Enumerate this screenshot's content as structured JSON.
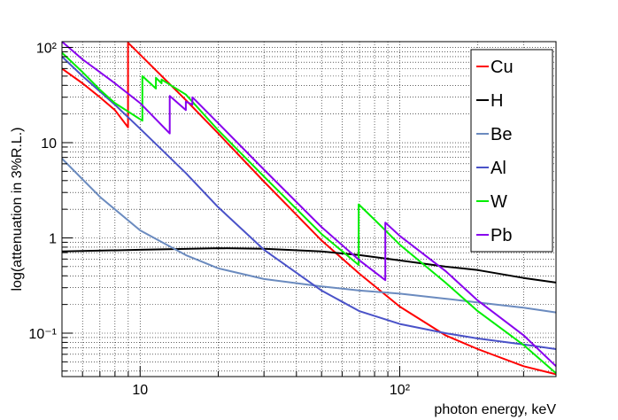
{
  "chart_data": {
    "type": "line",
    "xlabel": "photon energy, keV",
    "ylabel": "log(attenuation in 3%R.L.)",
    "x_scale": "log",
    "y_scale": "log",
    "xlim": [
      5,
      400
    ],
    "ylim": [
      0.035,
      115
    ],
    "grid": true,
    "legend_position": "top-right",
    "x_ticks": [
      {
        "value": 10,
        "label": "10"
      },
      {
        "value": 100,
        "label": "10²"
      }
    ],
    "y_ticks": [
      {
        "value": 0.1,
        "label": "10⁻¹"
      },
      {
        "value": 1,
        "label": "1"
      },
      {
        "value": 10,
        "label": "10"
      },
      {
        "value": 100,
        "label": "10²"
      }
    ],
    "series": [
      {
        "name": "Cu",
        "color": "#ff0000",
        "points": [
          [
            5,
            60
          ],
          [
            6,
            42
          ],
          [
            7,
            30
          ],
          [
            8,
            22
          ],
          [
            8.98,
            14.5
          ],
          [
            8.98,
            112
          ],
          [
            10,
            84
          ],
          [
            15,
            28
          ],
          [
            20,
            12.5
          ],
          [
            30,
            3.9
          ],
          [
            50,
            0.94
          ],
          [
            70,
            0.42
          ],
          [
            100,
            0.19
          ],
          [
            150,
            0.095
          ],
          [
            200,
            0.068
          ],
          [
            300,
            0.045
          ],
          [
            400,
            0.037
          ]
        ]
      },
      {
        "name": "H",
        "color": "#000000",
        "points": [
          [
            5,
            0.72
          ],
          [
            10,
            0.75
          ],
          [
            20,
            0.78
          ],
          [
            30,
            0.77
          ],
          [
            50,
            0.72
          ],
          [
            70,
            0.66
          ],
          [
            100,
            0.58
          ],
          [
            150,
            0.5
          ],
          [
            200,
            0.46
          ],
          [
            300,
            0.38
          ],
          [
            400,
            0.34
          ]
        ]
      },
      {
        "name": "Be",
        "color": "#6b8bbf",
        "points": [
          [
            5,
            6.8
          ],
          [
            7,
            2.7
          ],
          [
            10,
            1.2
          ],
          [
            15,
            0.66
          ],
          [
            20,
            0.48
          ],
          [
            30,
            0.37
          ],
          [
            50,
            0.31
          ],
          [
            70,
            0.28
          ],
          [
            100,
            0.26
          ],
          [
            150,
            0.23
          ],
          [
            200,
            0.21
          ],
          [
            300,
            0.185
          ],
          [
            400,
            0.165
          ]
        ]
      },
      {
        "name": "Al",
        "color": "#4a52c8",
        "points": [
          [
            5,
            80
          ],
          [
            6,
            50
          ],
          [
            8,
            25
          ],
          [
            10,
            14
          ],
          [
            15,
            4.8
          ],
          [
            20,
            2.1
          ],
          [
            30,
            0.75
          ],
          [
            50,
            0.28
          ],
          [
            70,
            0.17
          ],
          [
            100,
            0.125
          ],
          [
            150,
            0.1
          ],
          [
            200,
            0.088
          ],
          [
            300,
            0.076
          ],
          [
            400,
            0.068
          ]
        ]
      },
      {
        "name": "W",
        "color": "#00ee00",
        "points": [
          [
            5,
            88
          ],
          [
            6,
            55
          ],
          [
            7,
            36
          ],
          [
            8,
            26
          ],
          [
            10.2,
            17
          ],
          [
            10.2,
            50
          ],
          [
            11.5,
            37
          ],
          [
            11.5,
            48
          ],
          [
            12.1,
            42
          ],
          [
            12.1,
            46
          ],
          [
            15,
            32
          ],
          [
            20,
            13.5
          ],
          [
            30,
            4.4
          ],
          [
            50,
            1.1
          ],
          [
            69.5,
            0.52
          ],
          [
            69.5,
            2.25
          ],
          [
            80,
            1.55
          ],
          [
            100,
            0.85
          ],
          [
            150,
            0.34
          ],
          [
            200,
            0.17
          ],
          [
            300,
            0.075
          ],
          [
            400,
            0.038
          ]
        ]
      },
      {
        "name": "Pb",
        "color": "#8800ee",
        "points": [
          [
            5,
            115
          ],
          [
            6,
            75
          ],
          [
            8,
            42
          ],
          [
            10,
            26
          ],
          [
            13,
            12.5
          ],
          [
            13,
            31
          ],
          [
            15,
            22
          ],
          [
            15,
            27
          ],
          [
            15.9,
            25
          ],
          [
            15.9,
            30
          ],
          [
            20,
            16
          ],
          [
            30,
            5.2
          ],
          [
            50,
            1.3
          ],
          [
            70,
            0.58
          ],
          [
            88,
            0.36
          ],
          [
            88,
            1.45
          ],
          [
            100,
            1.05
          ],
          [
            150,
            0.45
          ],
          [
            200,
            0.22
          ],
          [
            300,
            0.095
          ],
          [
            400,
            0.045
          ]
        ]
      }
    ]
  }
}
